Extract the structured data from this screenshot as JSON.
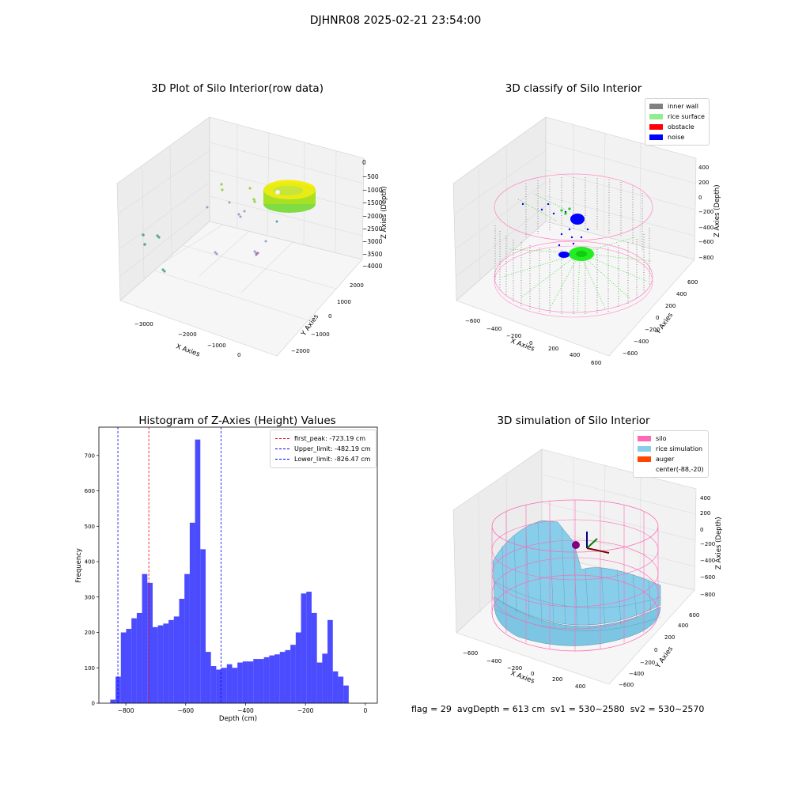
{
  "suptitle": "DJHNR08 2025-02-21 23:54:00",
  "footer": "flag = 29  avgDepth = 613 cm  sv1 = 530~2580  sv2 = 530~2570",
  "chart_data": [
    {
      "type": "scatter",
      "title": "3D Plot of Silo Interior(row data)",
      "xlabel": "X Axies",
      "ylabel": "Y Axies",
      "zlabel": "Z Axies (Depth)",
      "x_ticks": [
        "−3000",
        "−2000",
        "−1000",
        "0"
      ],
      "y_ticks": [
        "−2000",
        "−1000",
        "0",
        "1000",
        "2000"
      ],
      "z_ticks": [
        "−4000",
        "−3500",
        "−3000",
        "−2500",
        "−2000",
        "−1500",
        "−1000",
        "−500",
        "0"
      ]
    },
    {
      "type": "scatter",
      "title": "3D classify of Silo Interior",
      "xlabel": "X Axies",
      "ylabel": "Y Axies",
      "zlabel": "Z Axies (Depth)",
      "x_ticks": [
        "−600",
        "−400",
        "−200",
        "0",
        "200",
        "400",
        "600"
      ],
      "y_ticks": [
        "−600",
        "−400",
        "−200",
        "0",
        "200",
        "400",
        "600"
      ],
      "z_ticks": [
        "−800",
        "−600",
        "−400",
        "−200",
        "0",
        "200",
        "400"
      ],
      "legend": [
        {
          "label": "inner wall",
          "color": "#808080"
        },
        {
          "label": "rice surface",
          "color": "#90ee90"
        },
        {
          "label": "obstacle",
          "color": "#ff0000"
        },
        {
          "label": "noise",
          "color": "#0000ff"
        }
      ]
    },
    {
      "type": "bar",
      "title": "Histogram of Z-Axies (Height) Values",
      "xlabel": "Depth (cm)",
      "ylabel": "Frequency",
      "xlim": [
        -890,
        40
      ],
      "ylim": [
        0,
        780
      ],
      "x_ticks": [
        -800,
        -600,
        -400,
        -200,
        0
      ],
      "x_tick_labels": [
        "−800",
        "−600",
        "−400",
        "−200",
        "0"
      ],
      "y_ticks": [
        0,
        100,
        200,
        300,
        400,
        500,
        600,
        700
      ],
      "bar_color": "#0000ff",
      "bins_start": -852,
      "bin_width": 17.7,
      "values": [
        10,
        75,
        200,
        210,
        240,
        255,
        365,
        340,
        215,
        220,
        225,
        235,
        245,
        295,
        365,
        510,
        745,
        435,
        145,
        105,
        95,
        100,
        110,
        100,
        115,
        118,
        118,
        125,
        125,
        130,
        135,
        138,
        145,
        150,
        165,
        200,
        310,
        315,
        255,
        115,
        140,
        235,
        90,
        75,
        50
      ],
      "vlines": [
        {
          "label": "first_peak: -723.19 cm",
          "x": -723.19,
          "color": "#ff0000"
        },
        {
          "label": "Upper_limit: -482.19 cm",
          "x": -482.19,
          "color": "#0000ff"
        },
        {
          "label": "Lower_limit: -826.47 cm",
          "x": -826.47,
          "color": "#0000ff"
        }
      ]
    },
    {
      "type": "surface",
      "title": "3D simulation of Silo Interior",
      "xlabel": "X Axies",
      "ylabel": "Y Axies",
      "zlabel": "Z Axies (Depth)",
      "x_ticks": [
        "−600",
        "−400",
        "−200",
        "0",
        "200",
        "400"
      ],
      "y_ticks": [
        "−600",
        "−400",
        "−200",
        "0",
        "200",
        "400",
        "600"
      ],
      "z_ticks": [
        "−800",
        "−600",
        "−400",
        "−200",
        "0",
        "200",
        "400"
      ],
      "legend": [
        {
          "label": "silo",
          "color": "#ff69b4"
        },
        {
          "label": "rice simulation",
          "color": "#87ceeb"
        },
        {
          "label": "auger",
          "color": "#ff4500"
        },
        {
          "label": "center(-88,-20)",
          "color": ""
        }
      ]
    }
  ]
}
